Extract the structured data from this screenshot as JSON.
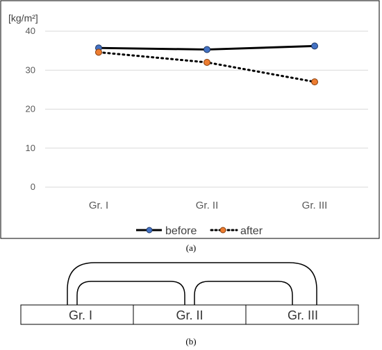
{
  "chart_data": {
    "type": "line",
    "unit_label": "[kg/m²]",
    "categories": [
      "Gr. I",
      "Gr. II",
      "Gr. III"
    ],
    "ylim": [
      0,
      40
    ],
    "yticks": [
      0,
      10,
      20,
      30,
      40
    ],
    "grid": true,
    "legend_position": "bottom",
    "series": [
      {
        "name": "before",
        "values": [
          35.7,
          35.3,
          36.2
        ],
        "line_style": "solid",
        "line_color": "#000000",
        "marker_color": "#4472C4"
      },
      {
        "name": "after",
        "values": [
          34.6,
          32.0,
          27.0
        ],
        "line_style": "dotted",
        "line_color": "#000000",
        "marker_color": "#ED7D31"
      }
    ]
  },
  "captions": {
    "a": "(a)",
    "b": "(b)"
  },
  "comparison_diagram": {
    "groups": [
      "Gr. I",
      "Gr. II",
      "Gr. III"
    ],
    "connections": [
      [
        "Gr. I",
        "Gr. II"
      ],
      [
        "Gr. II",
        "Gr. III"
      ],
      [
        "Gr. I",
        "Gr. III"
      ]
    ]
  }
}
